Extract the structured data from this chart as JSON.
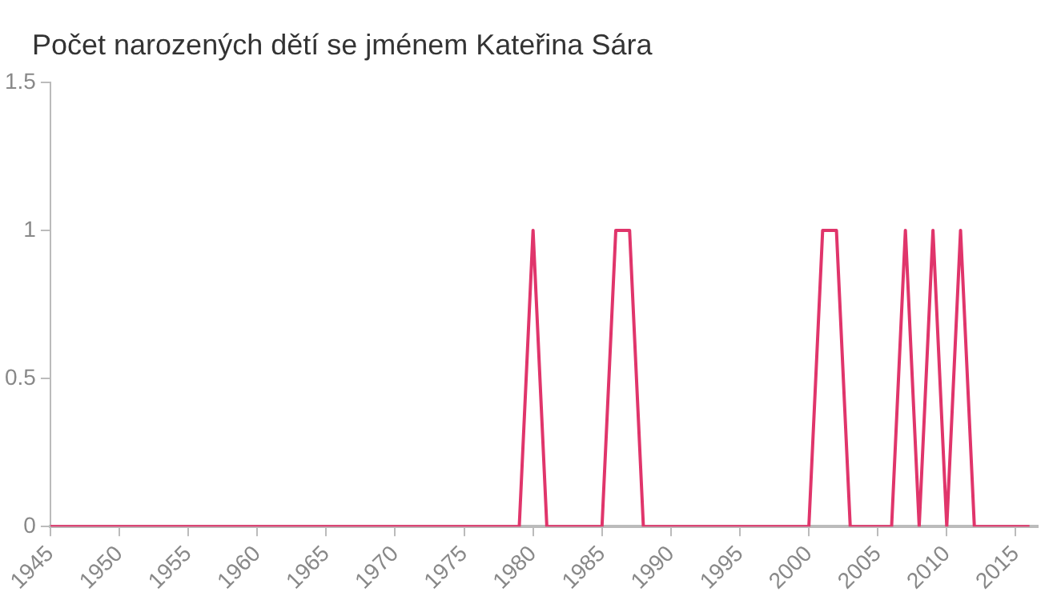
{
  "chart_data": {
    "type": "line",
    "title": "Počet narozených dětí se jménem Kateřina Sára",
    "x": [
      1945,
      1946,
      1947,
      1948,
      1949,
      1950,
      1951,
      1952,
      1953,
      1954,
      1955,
      1956,
      1957,
      1958,
      1959,
      1960,
      1961,
      1962,
      1963,
      1964,
      1965,
      1966,
      1967,
      1968,
      1969,
      1970,
      1971,
      1972,
      1973,
      1974,
      1975,
      1976,
      1977,
      1978,
      1979,
      1980,
      1981,
      1982,
      1983,
      1984,
      1985,
      1986,
      1987,
      1988,
      1989,
      1990,
      1991,
      1992,
      1993,
      1994,
      1995,
      1996,
      1997,
      1998,
      1999,
      2000,
      2001,
      2002,
      2003,
      2004,
      2005,
      2006,
      2007,
      2008,
      2009,
      2010,
      2011,
      2012,
      2013,
      2014,
      2015,
      2016
    ],
    "series": [
      {
        "color": "#e0356b",
        "values": [
          0,
          0,
          0,
          0,
          0,
          0,
          0,
          0,
          0,
          0,
          0,
          0,
          0,
          0,
          0,
          0,
          0,
          0,
          0,
          0,
          0,
          0,
          0,
          0,
          0,
          0,
          0,
          0,
          0,
          0,
          0,
          0,
          0,
          0,
          0,
          1,
          0,
          0,
          0,
          0,
          0,
          1,
          1,
          0,
          0,
          0,
          0,
          0,
          0,
          0,
          0,
          0,
          0,
          0,
          0,
          0,
          1,
          1,
          0,
          0,
          0,
          0,
          1,
          0,
          1,
          0,
          1,
          0,
          0,
          0,
          0,
          0
        ]
      }
    ],
    "xlim": [
      1945,
      2016.6
    ],
    "xticks": [
      1945,
      1950,
      1955,
      1960,
      1965,
      1970,
      1975,
      1980,
      1985,
      1990,
      1995,
      2000,
      2005,
      2010,
      2015
    ],
    "ylim": [
      0,
      1.5
    ],
    "yticks": [
      0,
      0.5,
      1,
      1.5
    ],
    "grid": false,
    "legend": false,
    "marker": "none",
    "line_style": "solid"
  }
}
